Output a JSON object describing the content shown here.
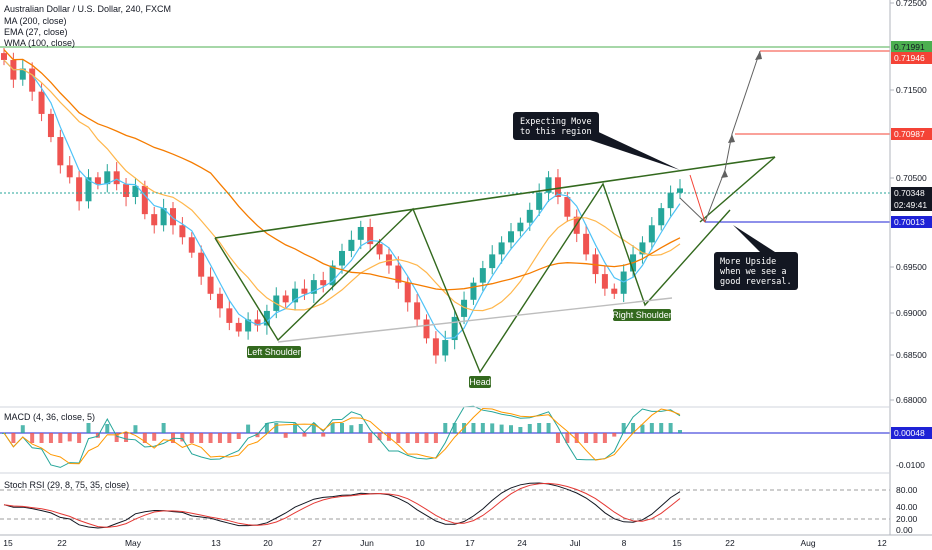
{
  "header": {
    "title": "Australian Dollar / U.S. Dollar, 240, FXCM",
    "indicators": [
      "MA (200, close)",
      "EMA (27, close)",
      "WMA (100, close)"
    ]
  },
  "macd_label": "MACD (4, 36, close, 5)",
  "rsi_label": "Stoch RSI (29, 8, 75, 35, close)",
  "colors": {
    "up": "#26a69a",
    "down": "#ef5350",
    "ma200": "#f57c00",
    "ema27": "#4fc3f7",
    "wma100": "#ffb74d",
    "pattern": "#33691e",
    "green_line": "#4caf50",
    "red_line": "#f44336",
    "blue_line": "#1e22d6",
    "arrow": "#616161"
  },
  "chart_data": {
    "type": "candlestick",
    "title": "Australian Dollar / U.S. Dollar, 240, FXCM",
    "x_ticks": [
      "15",
      "22",
      "May",
      "13",
      "20",
      "27",
      "Jun",
      "10",
      "17",
      "24",
      "Jul",
      "8",
      "15",
      "22",
      "Aug",
      "12"
    ],
    "y_ticks": [
      "0.72500",
      "0.71500",
      "0.70500",
      "0.69500",
      "0.69000",
      "0.68500",
      "0.68000"
    ],
    "ylim": [
      0.6788,
      0.7255
    ],
    "close_path": [
      0.7185,
      0.7162,
      0.7175,
      0.7148,
      0.7122,
      0.7095,
      0.7062,
      0.7048,
      0.702,
      0.7048,
      0.704,
      0.7055,
      0.704,
      0.7025,
      0.7038,
      0.7005,
      0.6992,
      0.7012,
      0.6992,
      0.6978,
      0.696,
      0.6932,
      0.6912,
      0.6895,
      0.6878,
      0.6868,
      0.6882,
      0.6875,
      0.6892,
      0.691,
      0.6902,
      0.6918,
      0.6912,
      0.6928,
      0.6922,
      0.6945,
      0.6962,
      0.6975,
      0.699,
      0.697,
      0.6958,
      0.6945,
      0.6925,
      0.6902,
      0.6882,
      0.686,
      0.684,
      0.6858,
      0.6885,
      0.6905,
      0.6925,
      0.6942,
      0.6958,
      0.6972,
      0.6985,
      0.6995,
      0.701,
      0.703,
      0.7048,
      0.7025,
      0.7002,
      0.6982,
      0.6958,
      0.6935,
      0.6918,
      0.6912,
      0.6938,
      0.6958,
      0.6972,
      0.6992,
      0.7012,
      0.703,
      0.7035
    ],
    "price_labels": [
      {
        "value": "0.71991",
        "color": "#4caf50",
        "text_color": "#131722"
      },
      {
        "value": "0.71946",
        "color": "#f44336",
        "text_color": "#ffffff"
      },
      {
        "value": "0.70987",
        "color": "#f44336",
        "text_color": "#ffffff"
      },
      {
        "value": "0.70348",
        "color": "#131722",
        "text_color": "#ffffff"
      },
      {
        "value": "02:49:41",
        "color": "#131722",
        "text_color": "#ffffff"
      },
      {
        "value": "0.70013",
        "color": "#1e22d6",
        "text_color": "#ffffff"
      }
    ],
    "annotations": {
      "expecting": [
        "Expecting Move",
        "to this region"
      ],
      "more_upside": [
        "More Upside",
        "when we see a",
        "good reversal."
      ],
      "left_shoulder": "Left Shoulder",
      "head": "Head",
      "right_shoulder": "Right Shoulder"
    },
    "macd": {
      "y_ticks": [
        "0.00048",
        "-0.0100"
      ],
      "value": "0.00048"
    },
    "stoch_rsi": {
      "y_ticks": [
        "80.00",
        "40.00",
        "20.00",
        "0.00"
      ]
    }
  }
}
